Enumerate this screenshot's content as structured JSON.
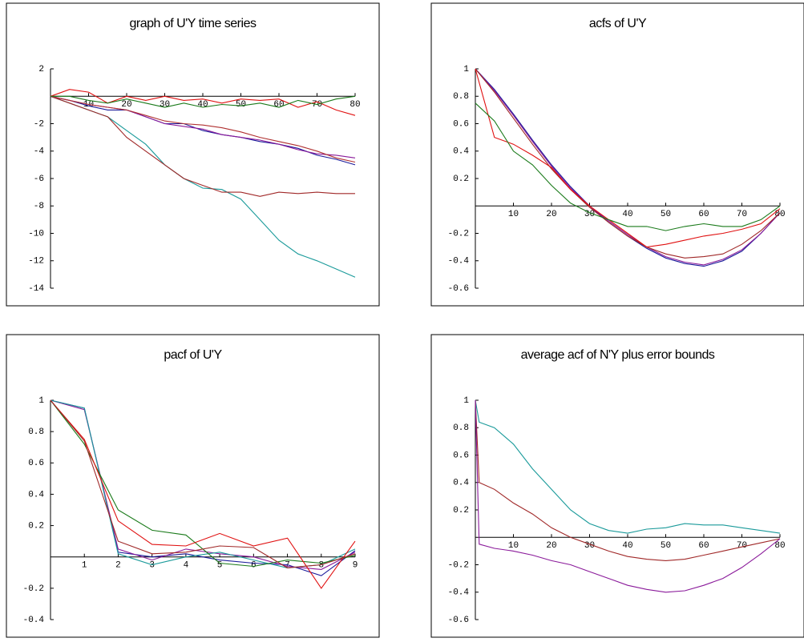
{
  "chart_data": [
    {
      "type": "line",
      "title": "graph of U'Y time series",
      "x": [
        0,
        5,
        10,
        15,
        20,
        25,
        30,
        35,
        40,
        45,
        50,
        55,
        60,
        65,
        70,
        75,
        80
      ],
      "xlim": [
        0,
        80
      ],
      "ylim": [
        -14,
        2
      ],
      "xticks": [
        10,
        20,
        30,
        40,
        50,
        60,
        70,
        80
      ],
      "yticks": [
        2,
        -2,
        -4,
        -6,
        -8,
        -10,
        -12,
        -14
      ],
      "series": [
        {
          "color": "#1a9a9a",
          "values": [
            0,
            -0.5,
            -1,
            -1.5,
            -2.5,
            -3.5,
            -5,
            -6,
            -6.7,
            -6.8,
            -7.5,
            -9,
            -10.5,
            -11.5,
            -12,
            -12.6,
            -13.2
          ]
        },
        {
          "color": "#a02828",
          "values": [
            0,
            -0.5,
            -1,
            -1.5,
            -3,
            -4,
            -5,
            -6,
            -6.5,
            -7,
            -7,
            -7.3,
            -7,
            -7.1,
            -7,
            -7.1,
            -7.1
          ]
        },
        {
          "color": "#1a1a9a",
          "values": [
            0,
            -0.3,
            -0.7,
            -1,
            -1,
            -1.5,
            -2,
            -2,
            -2.5,
            -2.8,
            -3,
            -3.3,
            -3.5,
            -3.8,
            -4.3,
            -4.6,
            -5
          ]
        },
        {
          "color": "#8a1a9a",
          "values": [
            0,
            -0.3,
            -0.6,
            -0.8,
            -1,
            -1.5,
            -2,
            -2.2,
            -2.4,
            -2.8,
            -3,
            -3.2,
            -3.5,
            -3.9,
            -4.2,
            -4.3,
            -4.5
          ]
        },
        {
          "color": "#b03030",
          "values": [
            0,
            -0.3,
            -0.6,
            -0.8,
            -1,
            -1.4,
            -1.8,
            -2,
            -2.1,
            -2.3,
            -2.6,
            -3,
            -3.3,
            -3.6,
            -4,
            -4.5,
            -4.8
          ]
        },
        {
          "color": "#e01010",
          "values": [
            0,
            0.5,
            0.3,
            -0.5,
            0,
            -0.3,
            0,
            -0.3,
            -0.2,
            -0.5,
            -0.2,
            -0.3,
            -0.2,
            -0.8,
            -0.4,
            -1,
            -1.4
          ]
        },
        {
          "color": "#1a7a1a",
          "values": [
            0,
            0,
            -0.3,
            -0.5,
            -0.2,
            -0.5,
            -0.8,
            -0.5,
            -0.8,
            -0.6,
            -0.7,
            -0.5,
            -0.8,
            -0.3,
            -0.6,
            -0.2,
            0
          ]
        }
      ]
    },
    {
      "type": "line",
      "title": "acfs of U'Y",
      "x": [
        0,
        5,
        10,
        15,
        20,
        25,
        30,
        35,
        40,
        45,
        50,
        55,
        60,
        65,
        70,
        75,
        80
      ],
      "xlim": [
        0,
        80
      ],
      "ylim": [
        -0.6,
        1
      ],
      "xticks": [
        10,
        20,
        30,
        40,
        50,
        60,
        70,
        80
      ],
      "yticks": [
        1,
        0.8,
        0.6,
        0.4,
        0.2,
        -0.2,
        -0.4,
        -0.6
      ],
      "series": [
        {
          "color": "#1a1a9a",
          "values": [
            1,
            0.85,
            0.67,
            0.48,
            0.3,
            0.14,
            0,
            -0.12,
            -0.22,
            -0.31,
            -0.38,
            -0.42,
            -0.44,
            -0.4,
            -0.33,
            -0.2,
            -0.05
          ]
        },
        {
          "color": "#8a1a9a",
          "values": [
            1,
            0.84,
            0.66,
            0.47,
            0.29,
            0.13,
            0,
            -0.11,
            -0.21,
            -0.3,
            -0.37,
            -0.41,
            -0.43,
            -0.39,
            -0.32,
            -0.2,
            -0.05
          ]
        },
        {
          "color": "#a02828",
          "values": [
            1,
            0.83,
            0.64,
            0.45,
            0.27,
            0.12,
            -0.01,
            -0.12,
            -0.22,
            -0.3,
            -0.35,
            -0.38,
            -0.37,
            -0.35,
            -0.28,
            -0.18,
            -0.05
          ]
        },
        {
          "color": "#e01010",
          "values": [
            1,
            0.5,
            0.45,
            0.37,
            0.28,
            0.12,
            0,
            -0.1,
            -0.2,
            -0.3,
            -0.28,
            -0.25,
            -0.22,
            -0.2,
            -0.17,
            -0.13,
            -0.02
          ]
        },
        {
          "color": "#1a7a1a",
          "values": [
            0.75,
            0.62,
            0.4,
            0.3,
            0.15,
            0.02,
            -0.05,
            -0.1,
            -0.15,
            -0.15,
            -0.18,
            -0.15,
            -0.13,
            -0.15,
            -0.15,
            -0.1,
            0
          ]
        }
      ]
    },
    {
      "type": "line",
      "title": "pacf of U'Y",
      "x": [
        0,
        1,
        2,
        3,
        4,
        5,
        6,
        7,
        8,
        9
      ],
      "xlim": [
        0,
        9
      ],
      "ylim": [
        -0.4,
        1
      ],
      "xticks": [
        1,
        2,
        3,
        4,
        5,
        6,
        7,
        8,
        9
      ],
      "yticks": [
        1,
        0.8,
        0.6,
        0.4,
        0.2,
        -0.2,
        -0.4
      ],
      "series": [
        {
          "color": "#1a1a9a",
          "values": [
            1,
            0.95,
            0.03,
            0,
            0.02,
            -0.02,
            -0.04,
            -0.05,
            -0.12,
            0.04
          ]
        },
        {
          "color": "#8a1a9a",
          "values": [
            1,
            0.94,
            0.05,
            -0.02,
            0.05,
            0.02,
            0,
            -0.06,
            -0.08,
            0.03
          ]
        },
        {
          "color": "#1a9a9a",
          "values": [
            1,
            0.95,
            0.02,
            -0.05,
            0,
            0.03,
            -0.02,
            -0.07,
            -0.05,
            0.05
          ]
        },
        {
          "color": "#1a7a1a",
          "values": [
            1,
            0.72,
            0.3,
            0.17,
            0.14,
            -0.04,
            -0.06,
            -0.02,
            -0.04,
            0.01
          ]
        },
        {
          "color": "#e01010",
          "values": [
            1,
            0.75,
            0.23,
            0.08,
            0.07,
            0.15,
            0.07,
            0.12,
            -0.2,
            0.1
          ]
        },
        {
          "color": "#a02828",
          "values": [
            1,
            0.74,
            0.1,
            0.02,
            0.03,
            0.07,
            0.06,
            -0.07,
            -0.05,
            0.02
          ]
        }
      ]
    },
    {
      "type": "line",
      "title": "average acf of N'Y plus error bounds",
      "x": [
        0,
        1,
        5,
        10,
        15,
        20,
        25,
        30,
        35,
        40,
        45,
        50,
        55,
        60,
        65,
        70,
        75,
        80
      ],
      "xlim": [
        0,
        80
      ],
      "ylim": [
        -0.6,
        1
      ],
      "xticks": [
        10,
        20,
        30,
        40,
        50,
        60,
        70,
        80
      ],
      "yticks": [
        1,
        0.8,
        0.6,
        0.4,
        0.2,
        -0.2,
        -0.4,
        -0.6
      ],
      "series": [
        {
          "color": "#1a9a9a",
          "values": [
            1,
            0.84,
            0.8,
            0.68,
            0.5,
            0.35,
            0.2,
            0.1,
            0.05,
            0.03,
            0.06,
            0.07,
            0.1,
            0.09,
            0.09,
            0.07,
            0.05,
            0.03
          ]
        },
        {
          "color": "#a02828",
          "values": [
            1,
            0.4,
            0.35,
            0.25,
            0.17,
            0.07,
            0,
            -0.05,
            -0.1,
            -0.14,
            -0.16,
            -0.17,
            -0.16,
            -0.13,
            -0.1,
            -0.07,
            -0.04,
            -0.01
          ]
        },
        {
          "color": "#8a1a9a",
          "values": [
            1,
            -0.05,
            -0.08,
            -0.1,
            -0.13,
            -0.17,
            -0.2,
            -0.25,
            -0.3,
            -0.35,
            -0.38,
            -0.4,
            -0.39,
            -0.35,
            -0.3,
            -0.22,
            -0.12,
            -0.01
          ]
        }
      ]
    }
  ]
}
